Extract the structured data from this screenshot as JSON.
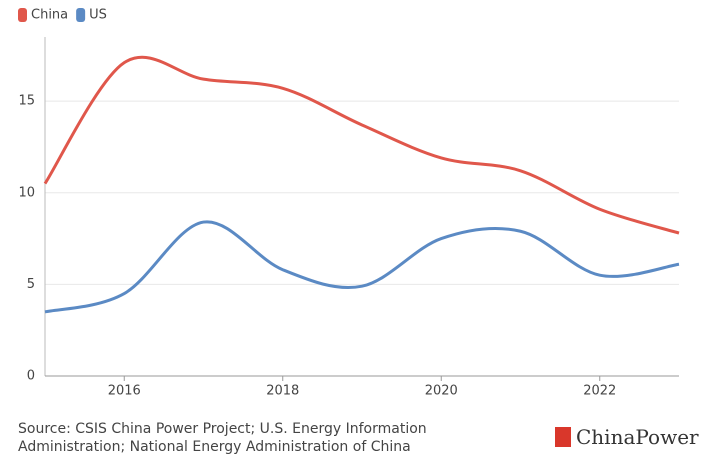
{
  "chart_data": {
    "type": "line",
    "x": [
      2015,
      2016,
      2017,
      2018,
      2019,
      2020,
      2021,
      2022,
      2023
    ],
    "series": [
      {
        "name": "China",
        "color": "#e0574b",
        "values": [
          10.5,
          17.1,
          16.2,
          15.7,
          13.7,
          11.9,
          11.2,
          9.1,
          7.8
        ]
      },
      {
        "name": "US",
        "color": "#5b8ac4",
        "values": [
          3.5,
          4.5,
          8.4,
          5.8,
          4.9,
          7.5,
          7.9,
          5.5,
          6.1
        ]
      }
    ],
    "xlim": [
      2015,
      2023
    ],
    "xticks": [
      2016,
      2018,
      2020,
      2022
    ],
    "ylim": [
      0,
      18.5
    ],
    "yticks": [
      0,
      5,
      10,
      15
    ],
    "grid": true,
    "legend": "top-left",
    "source": "Source: CSIS China Power Project; U.S. Energy Information Administration; National Energy Administration of China",
    "logo": "ChinaPower"
  }
}
